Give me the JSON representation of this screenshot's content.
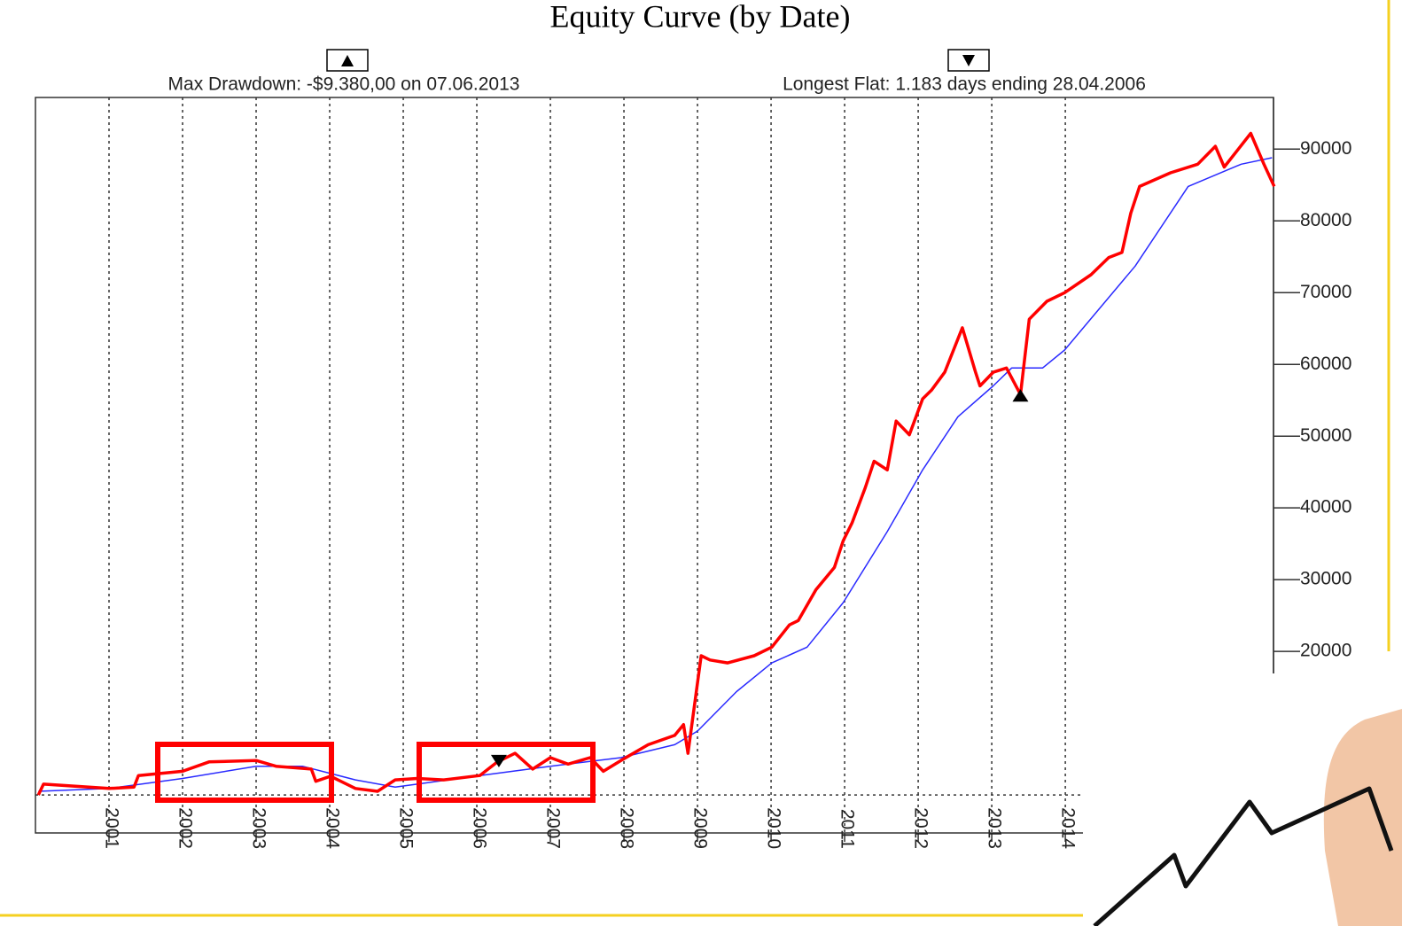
{
  "chart_data": {
    "type": "line",
    "title": "Equity Curve (by Date)",
    "annotations": [
      "Max Drawdown: -$9.380,00 on 07.06.2013",
      "Longest Flat: 1.183 days ending 28.04.2006"
    ],
    "xlim": [
      2000.0,
      2016.83
    ],
    "xticks": [
      2001,
      2002,
      2003,
      2004,
      2005,
      2006,
      2007,
      2008,
      2009,
      2010,
      2011,
      2012,
      2013,
      2014
    ],
    "ylim": [
      -5300,
      97200
    ],
    "yticks": [
      20000,
      30000,
      40000,
      50000,
      60000,
      70000,
      80000,
      90000
    ],
    "grid": true,
    "hline": 0,
    "series": [
      {
        "color": "#ff0000",
        "x": [
          2000.04,
          2000.11,
          2001.0,
          2001.34,
          2001.4,
          2002.0,
          2002.36,
          2003.0,
          2003.27,
          2003.75,
          2003.81,
          2004.01,
          2004.35,
          2004.65,
          2004.89,
          2005.19,
          2005.55,
          2006.04,
          2006.28,
          2006.52,
          2006.76,
          2007.0,
          2007.24,
          2007.54,
          2007.72,
          2007.96,
          2008.33,
          2008.69,
          2008.81,
          2008.87,
          2009.05,
          2009.17,
          2009.41,
          2009.77,
          2010.01,
          2010.25,
          2010.37,
          2010.61,
          2010.86,
          2010.98,
          2011.1,
          2011.28,
          2011.4,
          2011.58,
          2011.7,
          2011.88,
          2012.06,
          2012.18,
          2012.36,
          2012.6,
          2012.78,
          2012.84,
          2013.02,
          2013.2,
          2013.39,
          2013.51,
          2013.75,
          2013.99,
          2014.35,
          2014.59,
          2014.77,
          2014.89,
          2015.01,
          2015.43,
          2015.8,
          2016.04,
          2016.16,
          2016.52,
          2016.7,
          2016.84
        ],
        "values": [
          0,
          1500,
          900,
          1100,
          2700,
          3300,
          4600,
          4800,
          4000,
          3600,
          1900,
          2600,
          900,
          500,
          2100,
          2300,
          2100,
          2700,
          4600,
          5800,
          3600,
          5200,
          4300,
          5200,
          3300,
          4800,
          7000,
          8300,
          9800,
          5800,
          19400,
          18800,
          18400,
          19400,
          20600,
          23700,
          24300,
          28600,
          31700,
          35400,
          37900,
          42800,
          46500,
          45300,
          52100,
          50200,
          55200,
          56400,
          58900,
          65100,
          58900,
          57000,
          58900,
          59500,
          55800,
          66300,
          68800,
          70000,
          72500,
          74900,
          75600,
          81100,
          84800,
          86700,
          87900,
          90400,
          87500,
          92200,
          87900,
          84800
        ]
      },
      {
        "color": "#2a2aff",
        "x": [
          2000.04,
          2001.0,
          2002.0,
          2003.0,
          2003.63,
          2004.35,
          2004.89,
          2005.19,
          2006.04,
          2007.0,
          2007.96,
          2008.69,
          2009.0,
          2009.53,
          2010.01,
          2010.49,
          2010.98,
          2011.58,
          2012.06,
          2012.54,
          2013.02,
          2013.27,
          2013.69,
          2013.99,
          2014.95,
          2015.67,
          2016.39,
          2016.81
        ],
        "values": [
          500,
          900,
          2300,
          4000,
          4000,
          2100,
          1100,
          1500,
          2700,
          4000,
          5200,
          7000,
          8900,
          14400,
          18400,
          20600,
          26800,
          36700,
          45300,
          52700,
          57000,
          59500,
          59500,
          62000,
          73700,
          84800,
          87900,
          88800
        ]
      }
    ],
    "markers": [
      {
        "x": 2013.39,
        "y": 55800,
        "shape": "up"
      },
      {
        "x": 2006.3,
        "y": 4600,
        "shape": "down"
      }
    ]
  }
}
